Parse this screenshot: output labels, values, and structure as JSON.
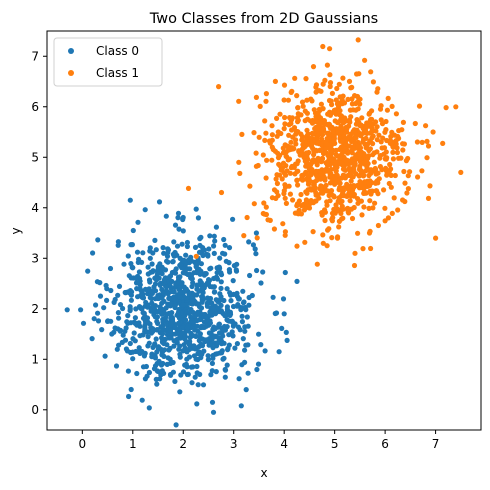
{
  "chart_data": {
    "type": "scatter",
    "title": "Two Classes from 2D Gaussians",
    "xlabel": "x",
    "ylabel": "y",
    "xlim": [
      -0.7,
      7.9
    ],
    "ylim": [
      -0.4,
      7.5
    ],
    "xticks": [
      0,
      1,
      2,
      3,
      4,
      5,
      6,
      7
    ],
    "yticks": [
      0,
      1,
      2,
      3,
      4,
      5,
      6,
      7
    ],
    "grid": false,
    "legend_position": "top-left",
    "series": [
      {
        "name": "Class 0",
        "color": "#1f77b4",
        "count": 1000,
        "center": [
          2.0,
          2.0
        ],
        "spread": [
          0.7,
          0.7
        ],
        "sample_points": [
          [
            -0.3,
            1.98
          ],
          [
            2.6,
            -0.05
          ],
          [
            3.15,
            0.08
          ],
          [
            0.95,
            4.15
          ],
          [
            2.3,
            3.8
          ],
          [
            3.45,
            3.5
          ],
          [
            4.0,
            1.9
          ],
          [
            3.9,
            1.15
          ],
          [
            0.5,
            1.75
          ]
        ]
      },
      {
        "name": "Class 1",
        "color": "#ff7f0e",
        "count": 1000,
        "center": [
          5.0,
          5.0
        ],
        "spread": [
          0.7,
          0.7
        ],
        "sample_points": [
          [
            4.9,
            7.15
          ],
          [
            7.4,
            6.0
          ],
          [
            7.5,
            4.7
          ],
          [
            2.7,
            6.4
          ],
          [
            3.1,
            4.9
          ],
          [
            3.2,
            3.45
          ],
          [
            7.0,
            3.4
          ],
          [
            4.85,
            3.25
          ],
          [
            6.95,
            5.5
          ]
        ]
      }
    ]
  }
}
